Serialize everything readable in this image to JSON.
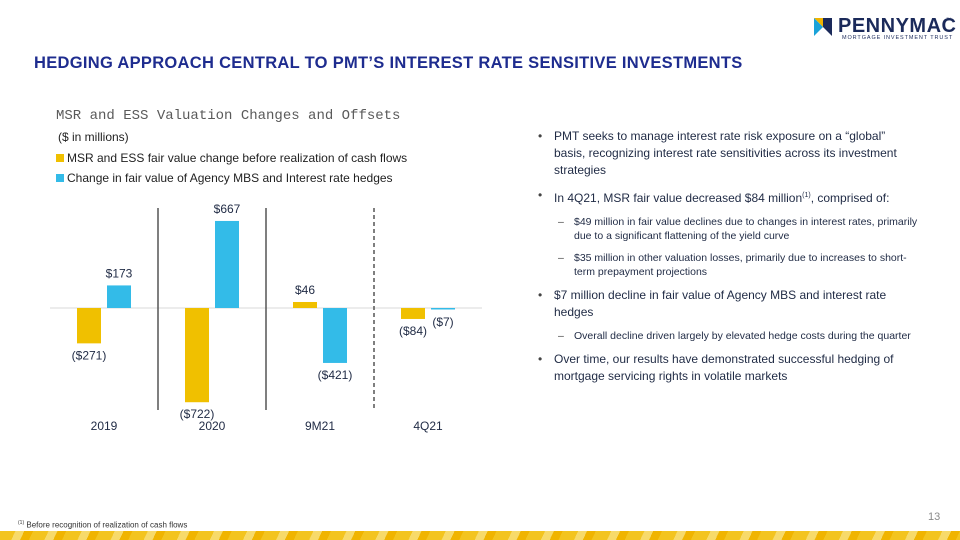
{
  "header": {
    "title": "HEDGING APPROACH CENTRAL TO PMT’S INTEREST RATE SENSITIVE INVESTMENTS",
    "logo_text": "PENNYMAC",
    "logo_tm": "™",
    "logo_subtitle": "MORTGAGE INVESTMENT TRUST",
    "logo_colors": {
      "teal": "#1aa3d9",
      "gold": "#f0b400",
      "navy": "#1b2a5a"
    }
  },
  "colors": {
    "title": "#1e2c8f",
    "series_fair_value": "#f0c000",
    "series_hedges": "#33bbe8"
  },
  "chart_data": {
    "type": "bar",
    "title": "MSR and ESS Valuation Changes and Offsets",
    "subtitle": "($ in millions)",
    "categories": [
      "2019",
      "2020",
      "9M21",
      "4Q21"
    ],
    "series": [
      {
        "name": "MSR and ESS fair value change before realization of cash flows",
        "values": [
          -271,
          -722,
          46,
          -84
        ],
        "labels": [
          "($271)",
          "($722)",
          "$46",
          "($84)"
        ],
        "color": "#f0c000"
      },
      {
        "name": "Change in fair value of Agency MBS and Interest rate hedges",
        "values": [
          173,
          667,
          -421,
          -7
        ],
        "labels": [
          "$173",
          "$667",
          "($421)",
          "($7)"
        ],
        "color": "#33bbe8"
      }
    ],
    "ylim": [
      -722,
      667
    ],
    "grid": false,
    "legend": "top-left",
    "separators": [
      "solid",
      "solid",
      "dashed"
    ]
  },
  "bullets": [
    {
      "level": 1,
      "text": "PMT seeks to manage interest rate risk exposure on a “global” basis, recognizing interest rate sensitivities across its investment strategies"
    },
    {
      "level": 1,
      "text": "In 4Q21, MSR fair value decreased $84 million",
      "sup": "(1)",
      "text_after": ", comprised of:"
    },
    {
      "level": 2,
      "text": "$49 million in fair value declines due to changes in interest rates, primarily due to a  significant flattening of the yield curve"
    },
    {
      "level": 2,
      "text": "$35 million in other valuation losses, primarily due to increases to short-term prepayment projections"
    },
    {
      "level": 1,
      "text": "$7 million decline in fair value of Agency MBS and interest rate hedges"
    },
    {
      "level": 2,
      "text": "Overall decline driven largely by elevated hedge costs during the quarter"
    },
    {
      "level": 1,
      "text": "Over time, our results have demonstrated successful hedging of mortgage servicing rights in volatile markets"
    }
  ],
  "footnote": {
    "marker": "(1)",
    "text": "Before recognition of realization of cash flows"
  },
  "page_number": "13"
}
